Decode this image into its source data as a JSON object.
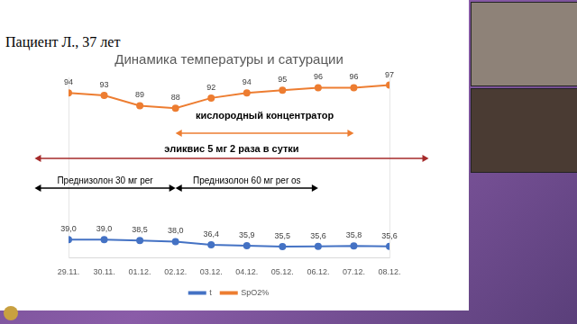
{
  "slide_title": "Пациент Л., 37 лет",
  "chart_data": {
    "type": "line",
    "title": "Динамика температуры и сатурации",
    "categories": [
      "29.11.",
      "30.11.",
      "01.12.",
      "02.12.",
      "03.12.",
      "04.12.",
      "05.12.",
      "06.12.",
      "07.12.",
      "08.12."
    ],
    "series": [
      {
        "name": "t",
        "color": "#4472c4",
        "axis": "y",
        "marker": "circle",
        "values": [
          39.0,
          39.0,
          38.5,
          38.0,
          36.4,
          35.9,
          35.5,
          35.6,
          35.8,
          35.6
        ],
        "value_labels": [
          "39,0",
          "39,0",
          "38,5",
          "38,0",
          "36,4",
          "35,9",
          "35,5",
          "35,6",
          "35,8",
          "35,6"
        ]
      },
      {
        "name": "SpO2%",
        "color": "#ed7d31",
        "axis": "y2",
        "marker": "circle",
        "values": [
          94,
          93,
          89,
          88,
          92,
          94,
          95,
          96,
          96,
          97
        ]
      }
    ],
    "ylim": [
      30,
      120
    ],
    "y2lim": [
      30,
      100
    ],
    "grid": false,
    "legend": "bottom",
    "data_labels": true,
    "tick_labels": "x",
    "annotations": [
      {
        "text": "кислородный концентратор",
        "from": "02.12.",
        "to": "07.12.",
        "color": "#ed7d31"
      },
      {
        "text": "эликвис 5 мг 2 раза в сутки",
        "from": "29.11.",
        "to": "08.12.",
        "color": "#a52a2a"
      },
      {
        "text": "Преднизолон 30 мг per",
        "from": "29.11.",
        "to": "02.12.",
        "color": "#000000"
      },
      {
        "text": "Преднизолон 60 мг per os",
        "from": "02.12.",
        "to": "06.12.",
        "color": "#000000"
      }
    ]
  }
}
